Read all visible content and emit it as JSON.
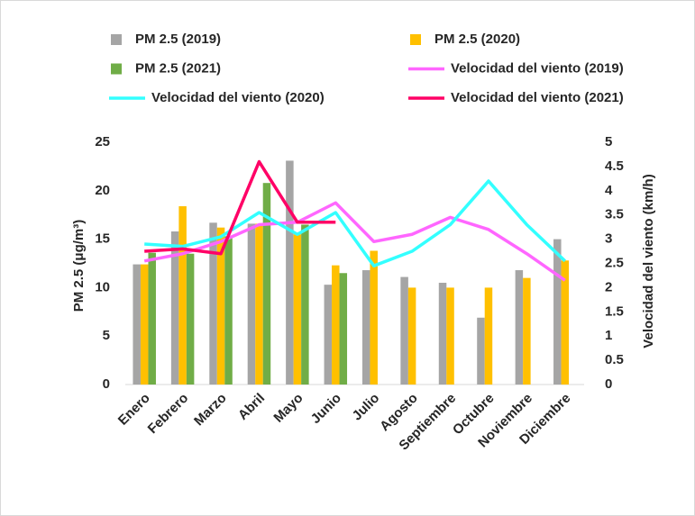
{
  "chart_data": {
    "type": "bar",
    "categories": [
      "Enero",
      "Febrero",
      "Marzo",
      "Abril",
      "Mayo",
      "Junio",
      "Julio",
      "Agosto",
      "Septiembre",
      "Octubre",
      "Noviembre",
      "Diciembre"
    ],
    "ylabel": "PM 2.5 (μg/m³)",
    "y2label": "Velocidad del viento (km/h)",
    "ylim": [
      0,
      25
    ],
    "yticks": [
      0,
      5,
      10,
      15,
      20,
      25
    ],
    "y2lim": [
      0,
      5
    ],
    "y2ticks": [
      0,
      0.5,
      1,
      1.5,
      2,
      2.5,
      3,
      3.5,
      4,
      4.5,
      5
    ],
    "series": [
      {
        "name": "PM 2.5 (2019)",
        "type": "bar",
        "color": "#a5a5a5",
        "values": [
          12.4,
          15.8,
          16.7,
          16.6,
          23.1,
          10.3,
          11.8,
          11.1,
          10.5,
          6.9,
          11.8,
          15.0
        ]
      },
      {
        "name": "PM 2.5 (2020)",
        "type": "bar",
        "color": "#ffc000",
        "values": [
          12.4,
          18.4,
          16.2,
          16.6,
          15.5,
          12.3,
          13.8,
          10.0,
          10.0,
          10.0,
          11.0,
          12.8
        ]
      },
      {
        "name": "PM 2.5 (2021)",
        "type": "bar",
        "color": "#70ad47",
        "values": [
          13.6,
          13.5,
          15.3,
          20.8,
          16.5,
          11.5,
          null,
          null,
          null,
          null,
          null,
          null
        ]
      },
      {
        "name": "Velocidad del viento (2019)",
        "type": "line",
        "axis": "y2",
        "color": "#ff66ff",
        "values": [
          2.55,
          2.7,
          2.95,
          3.3,
          3.35,
          3.75,
          2.95,
          3.1,
          3.45,
          3.2,
          2.7,
          2.15
        ]
      },
      {
        "name": "Velocidad del viento (2020)",
        "type": "line",
        "axis": "y2",
        "color": "#33ffff",
        "values": [
          2.9,
          2.85,
          3.05,
          3.55,
          3.1,
          3.55,
          2.45,
          2.75,
          3.3,
          4.2,
          3.3,
          2.55
        ]
      },
      {
        "name": "Velocidad del viento (2021)",
        "type": "line",
        "axis": "y2",
        "color": "#ff0066",
        "values": [
          2.75,
          2.8,
          2.7,
          4.6,
          3.35,
          3.35,
          null,
          null,
          null,
          null,
          null,
          null
        ]
      }
    ]
  }
}
